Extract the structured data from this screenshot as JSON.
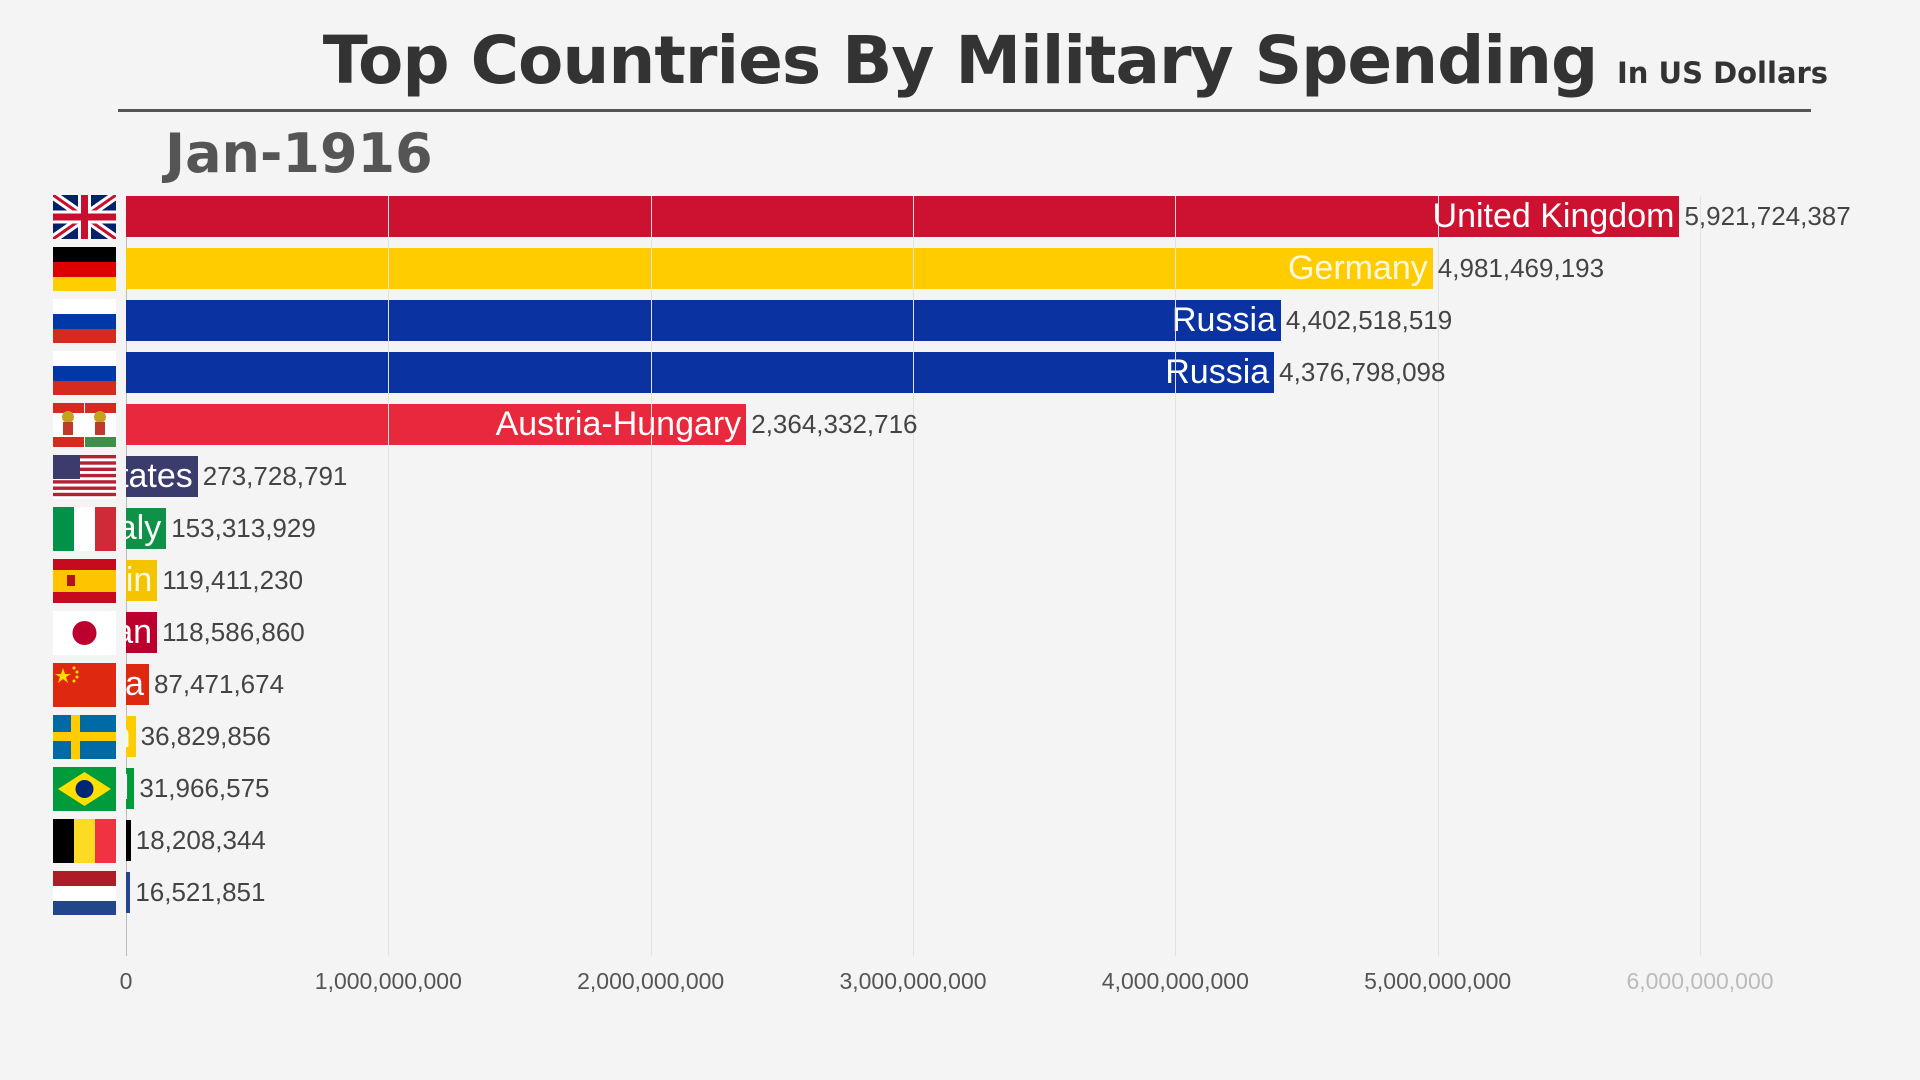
{
  "chart_data": {
    "type": "bar",
    "orientation": "horizontal",
    "title": "Top Countries By Military Spending",
    "subtitle": "In US Dollars",
    "date": "Jan-1916",
    "xlim": [
      0,
      6000000000
    ],
    "ticks": [
      {
        "value": 0,
        "label": "0"
      },
      {
        "value": 1000000000,
        "label": "1,000,000,000"
      },
      {
        "value": 2000000000,
        "label": "2,000,000,000"
      },
      {
        "value": 3000000000,
        "label": "3,000,000,000"
      },
      {
        "value": 4000000000,
        "label": "4,000,000,000"
      },
      {
        "value": 5000000000,
        "label": "5,000,000,000"
      },
      {
        "value": 6000000000,
        "label": "6,000,000,000"
      }
    ],
    "grid": true,
    "bars": [
      {
        "name": "United Kingdom",
        "value": 5921724387,
        "label": "5,921,724,387",
        "color": "#cc1230",
        "flag": "uk"
      },
      {
        "name": "Germany",
        "value": 4981469193,
        "label": "4,981,469,193",
        "color": "#ffcc00",
        "flag": "germany"
      },
      {
        "name": "Russia",
        "value": 4402518519,
        "label": "4,402,518,519",
        "color": "#0a32a0",
        "flag": "russia"
      },
      {
        "name": "Russia",
        "value": 4376798098,
        "label": "4,376,798,098",
        "color": "#0a32a0",
        "flag": "russia"
      },
      {
        "name": "Austria-Hungary",
        "value": 2364332716,
        "label": "2,364,332,716",
        "color": "#e8283c",
        "flag": "austria-hungary"
      },
      {
        "name": "United States",
        "value": 273728791,
        "label": "273,728,791",
        "color": "#3c3b6e",
        "flag": "usa"
      },
      {
        "name": "Italy",
        "value": 153313929,
        "label": "153,313,929",
        "color": "#0f9248",
        "flag": "italy"
      },
      {
        "name": "Spain",
        "value": 119411230,
        "label": "119,411,230",
        "color": "#f5c400",
        "flag": "spain"
      },
      {
        "name": "Japan",
        "value": 118586860,
        "label": "118,586,860",
        "color": "#bc002d",
        "flag": "japan"
      },
      {
        "name": "China",
        "value": 87471674,
        "label": "87,471,674",
        "color": "#de2910",
        "flag": "china"
      },
      {
        "name": "Sweden",
        "value": 36829856,
        "label": "36,829,856",
        "color": "#fecc00",
        "flag": "sweden"
      },
      {
        "name": "Brazil",
        "value": 31966575,
        "label": "31,966,575",
        "color": "#009c3b",
        "flag": "brazil"
      },
      {
        "name": "Belgium",
        "value": 18208344,
        "label": "18,208,344",
        "color": "#000000",
        "flag": "belgium"
      },
      {
        "name": "Netherlands",
        "value": 16521851,
        "label": "16,521,851",
        "color": "#21468b",
        "flag": "netherlands"
      }
    ]
  }
}
